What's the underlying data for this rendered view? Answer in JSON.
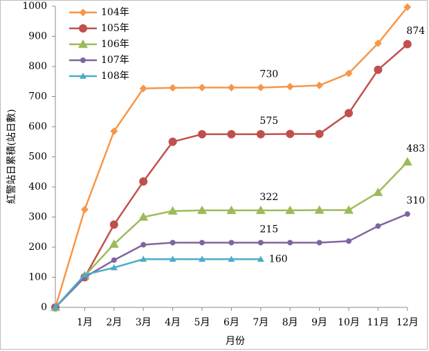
{
  "chart_data": {
    "type": "line",
    "x_label": "月份",
    "y_label": "紅警站日累積(站日數)",
    "categories": [
      null,
      "1月",
      "2月",
      "3月",
      "4月",
      "5月",
      "6月",
      "7月",
      "8月",
      "9月",
      "10月",
      "11月",
      "12月"
    ],
    "ylim": [
      0,
      1000
    ],
    "yticks": [
      0,
      100,
      200,
      300,
      400,
      500,
      600,
      700,
      800,
      900,
      1000
    ],
    "grid": false,
    "legend": "upper left",
    "series": [
      {
        "name": "104年",
        "color": "#f79646",
        "marker": "diamond",
        "values": [
          0,
          325,
          585,
          727,
          729,
          730,
          730,
          730,
          733,
          737,
          777,
          877,
          997
        ],
        "value_labels": [
          null,
          null,
          null,
          null,
          null,
          null,
          null,
          "730",
          null,
          null,
          null,
          null,
          null
        ]
      },
      {
        "name": "105年",
        "color": "#c0504d",
        "marker": "circle",
        "values": [
          0,
          100,
          275,
          418,
          550,
          575,
          575,
          575,
          576,
          576,
          645,
          789,
          874
        ],
        "value_labels": [
          null,
          null,
          null,
          null,
          null,
          null,
          null,
          "575",
          null,
          null,
          null,
          null,
          "874"
        ]
      },
      {
        "name": "106年",
        "color": "#9bbb59",
        "marker": "triangle",
        "values": [
          0,
          105,
          210,
          300,
          320,
          322,
          322,
          322,
          322,
          323,
          323,
          382,
          483
        ],
        "value_labels": [
          null,
          null,
          null,
          null,
          null,
          null,
          null,
          "322",
          null,
          null,
          null,
          null,
          "483"
        ]
      },
      {
        "name": "107年",
        "color": "#8064a2",
        "marker": "circle",
        "values": [
          0,
          100,
          157,
          208,
          215,
          215,
          215,
          215,
          215,
          215,
          220,
          270,
          310
        ],
        "value_labels": [
          null,
          null,
          null,
          null,
          null,
          null,
          null,
          "215",
          null,
          null,
          null,
          null,
          "310"
        ]
      },
      {
        "name": "108年",
        "color": "#4bacc6",
        "marker": "triangle",
        "values": [
          0,
          108,
          132,
          160,
          160,
          160,
          160,
          160,
          null,
          null,
          null,
          null,
          null
        ],
        "value_labels": [
          null,
          null,
          null,
          null,
          null,
          null,
          null,
          "160",
          null,
          null,
          null,
          null,
          null
        ]
      }
    ]
  }
}
